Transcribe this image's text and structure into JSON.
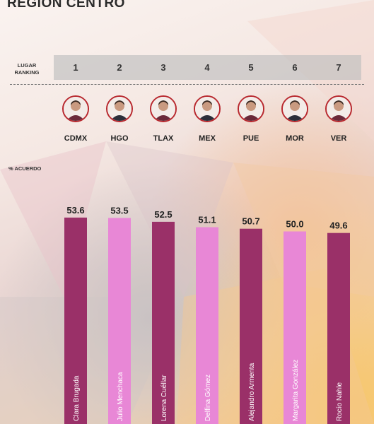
{
  "title": "REGIÓN CENTRO",
  "rank_label_line1": "LUGAR",
  "rank_label_line2": "RANKING",
  "pct_label": "% ACUERDO",
  "colors": {
    "dark": "#9a3068",
    "light": "#e887d6",
    "avatar_border": "#b8282e"
  },
  "chart_data": {
    "type": "bar",
    "ranks": [
      "1",
      "2",
      "3",
      "4",
      "5",
      "6",
      "7"
    ],
    "categories": [
      "CDMX",
      "HGO",
      "TLAX",
      "MEX",
      "PUE",
      "MOR",
      "VER"
    ],
    "names": [
      "Clara Brugada",
      "Julio Menchaca",
      "Lorena Cuéllar",
      "Delfina Gómez",
      "Alejandro Armenta",
      "Margarita González",
      "Rocío Nahle"
    ],
    "values": [
      53.6,
      53.5,
      52.5,
      51.1,
      50.7,
      50.0,
      49.6
    ],
    "value_labels": [
      "53.6",
      "53.5",
      "52.5",
      "51.1",
      "50.7",
      "50.0",
      "49.6"
    ],
    "bar_colors": [
      "#9a3068",
      "#e887d6",
      "#9a3068",
      "#e887d6",
      "#9a3068",
      "#e887d6",
      "#9a3068"
    ],
    "avatar_icons": [
      "person-avatar-icon",
      "person-avatar-icon",
      "person-avatar-icon",
      "person-avatar-icon",
      "person-avatar-icon",
      "person-avatar-icon",
      "person-avatar-icon"
    ]
  }
}
